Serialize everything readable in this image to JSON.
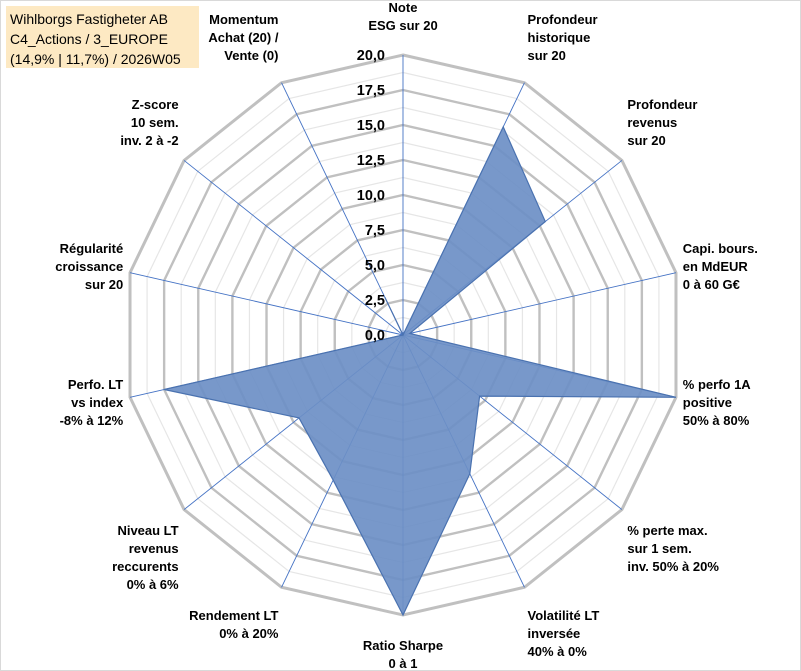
{
  "title_box": {
    "line1": "Wihlborgs Fastigheter AB",
    "line2": "C4_Actions / 3_EUROPE",
    "line3": "(14,9% | 11,7%) / 2026W05"
  },
  "chart_data": {
    "type": "radar",
    "rmin": 0,
    "rmax": 20,
    "ticks": [
      "0,0",
      "2,5",
      "5,0",
      "7,5",
      "10,0",
      "12,5",
      "15,0",
      "17,5",
      "20,0"
    ],
    "tick_values": [
      0,
      2.5,
      5,
      7.5,
      10,
      12.5,
      15,
      17.5,
      20
    ],
    "grid_rings": 16,
    "axes": [
      {
        "label": [
          "Note",
          "ESG sur 20"
        ],
        "value": 0
      },
      {
        "label": [
          "Profondeur",
          "historique",
          "sur 20"
        ],
        "value": 16.5
      },
      {
        "label": [
          "Profondeur",
          "revenus",
          "sur 20"
        ],
        "value": 13
      },
      {
        "label": [
          "Capi. bours.",
          "en MdEUR",
          "0 à 60 G€"
        ],
        "value": 0.5
      },
      {
        "label": [
          "% perfo 1A",
          "positive",
          "50% à 80%"
        ],
        "value": 20
      },
      {
        "label": [
          "% perte max.",
          "sur 1 sem.",
          "inv. 50% à 20%"
        ],
        "value": 7
      },
      {
        "label": [
          "Volatilité LT",
          "inversée",
          "40% à 0%"
        ],
        "value": 11
      },
      {
        "label": [
          "Ratio Sharpe",
          "0 à 1"
        ],
        "value": 20
      },
      {
        "label": [
          "Rendement LT",
          "0% à 20%"
        ],
        "value": 11.5
      },
      {
        "label": [
          "Niveau LT",
          "revenus",
          "reccurents",
          "0% à 6%"
        ],
        "value": 9.5
      },
      {
        "label": [
          "Perfo. LT",
          "vs index",
          "-8% à 12%"
        ],
        "value": 17.5
      },
      {
        "label": [
          "Régularité",
          "croissance",
          "sur 20"
        ],
        "value": 0
      },
      {
        "label": [
          "Z-score",
          "10 sem.",
          "inv. 2 à -2"
        ],
        "value": 0
      },
      {
        "label": [
          "Momentum",
          "Achat (20) /",
          "Vente (0)"
        ],
        "value": 3
      }
    ],
    "fill_color": "#6d8fc6",
    "line_color": "#4a72b0",
    "grid_color": "#c0c0c0",
    "spoke_color": "#4472c4"
  }
}
